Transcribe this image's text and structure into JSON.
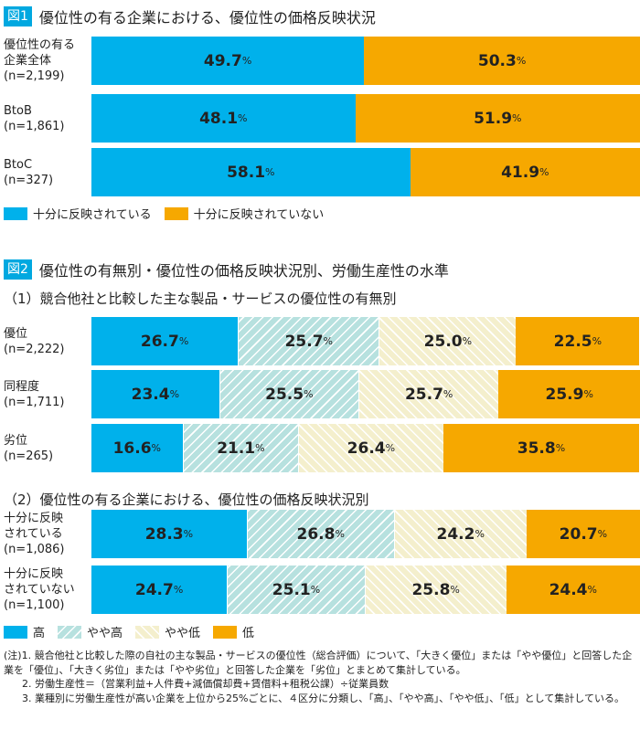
{
  "colors": {
    "high": "#00b1eb",
    "mid_high": "#b7e1df",
    "mid_low": "#f4efcd",
    "low": "#f6a800",
    "tag": "#00a8e0"
  },
  "chart_data": [
    {
      "type": "bar",
      "stacked": "100%",
      "orientation": "horizontal",
      "tag": "図1",
      "title": "優位性の有る企業における、優位性の価格反映状況",
      "categories": [
        [
          "優位性の有る",
          "企業全体",
          "(n=2,199)"
        ],
        [
          "BtoB",
          "(n=1,861)"
        ],
        [
          "BtoC",
          "(n=327)"
        ]
      ],
      "series": [
        {
          "name": "十分に反映されている",
          "values": [
            49.7,
            48.1,
            58.1
          ],
          "color": "#00b1eb"
        },
        {
          "name": "十分に反映されていない",
          "values": [
            50.3,
            51.9,
            41.9
          ],
          "color": "#f6a800"
        }
      ]
    },
    {
      "type": "bar",
      "stacked": "100%",
      "orientation": "horizontal",
      "tag": "図2",
      "title": "優位性の有無別・優位性の価格反映状況別、労働生産性の水準",
      "subtitle": "（1）競合他社と比較した主な製品・サービスの優位性の有無別",
      "categories": [
        [
          "優位",
          "(n=2,222)"
        ],
        [
          "同程度",
          "(n=1,711)"
        ],
        [
          "劣位",
          "(n=265)"
        ]
      ],
      "series": [
        {
          "name": "高",
          "values": [
            26.7,
            23.4,
            16.6
          ]
        },
        {
          "name": "やや高",
          "values": [
            25.7,
            25.5,
            21.1
          ]
        },
        {
          "name": "やや低",
          "values": [
            25.0,
            25.7,
            26.4
          ]
        },
        {
          "name": "低",
          "values": [
            22.5,
            25.9,
            35.8
          ]
        }
      ]
    },
    {
      "type": "bar",
      "stacked": "100%",
      "orientation": "horizontal",
      "subtitle": "（2）優位性の有る企業における、優位性の価格反映状況別",
      "categories": [
        [
          "十分に反映",
          "されている",
          "(n=1,086)"
        ],
        [
          "十分に反映",
          "されていない",
          "(n=1,100)"
        ]
      ],
      "series": [
        {
          "name": "高",
          "values": [
            28.3,
            24.7
          ]
        },
        {
          "name": "やや高",
          "values": [
            26.8,
            25.1
          ]
        },
        {
          "name": "やや低",
          "values": [
            24.2,
            25.8
          ]
        },
        {
          "name": "低",
          "values": [
            20.7,
            24.4
          ]
        }
      ]
    }
  ],
  "unit": "%",
  "notes": {
    "prefix": "(注)",
    "items": [
      "1. 競合他社と比較した際の自社の主な製品・サービスの優位性（総合評価）について、「大きく優位」または「やや優位」と回答した企業を「優位」、「大きく劣位」または「やや劣位」と回答した企業を「劣位」とまとめて集計している。",
      "2. 労働生産性＝（営業利益+人件費+減価償却費+賃借料+租税公課）÷従業員数",
      "3. 業種別に労働生産性が高い企業を上位から25%ごとに、４区分に分類し、「高」、「やや高」、「やや低」、「低」として集計している。"
    ]
  }
}
